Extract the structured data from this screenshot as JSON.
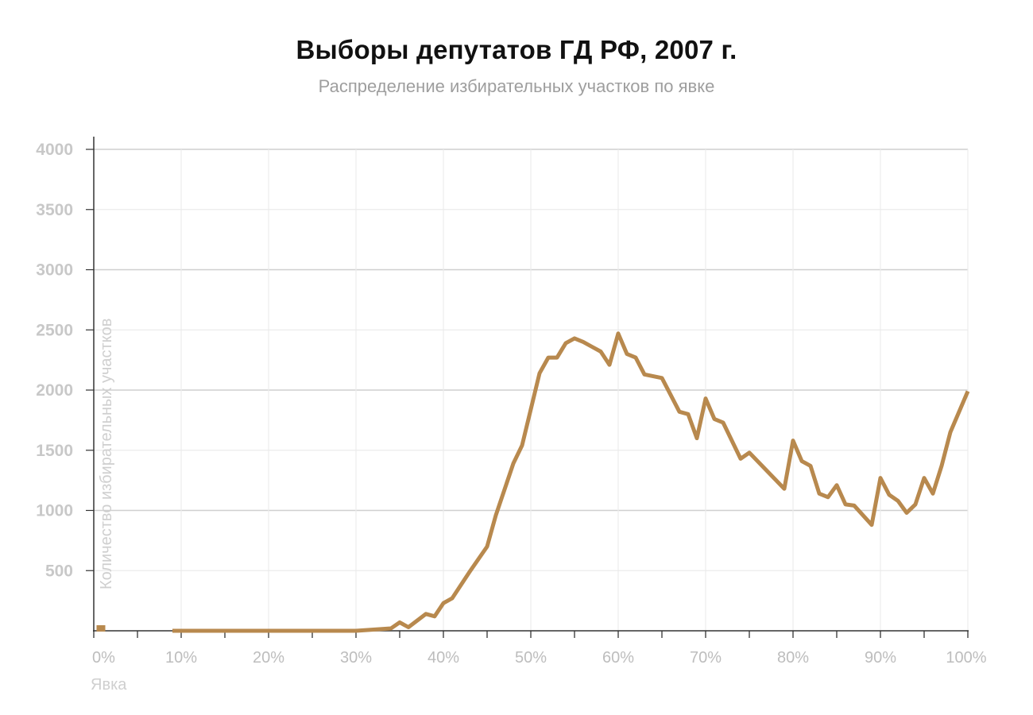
{
  "chart_data": {
    "type": "line",
    "title": "Выборы депутатов ГД РФ, 2007 г.",
    "subtitle": "Распределение избирательных участков по явке",
    "xlabel": "Явка",
    "ylabel": "Количество избирательных участков",
    "xlim": [
      0,
      100
    ],
    "ylim": [
      0,
      4000
    ],
    "x_ticks": [
      0,
      10,
      20,
      30,
      40,
      50,
      60,
      70,
      80,
      90,
      100
    ],
    "x_tick_labels": [
      "0%",
      "10%",
      "20%",
      "30%",
      "40%",
      "50%",
      "60%",
      "70%",
      "80%",
      "90%",
      "100%"
    ],
    "y_ticks": [
      500,
      1000,
      1500,
      2000,
      2500,
      3000,
      3500,
      4000
    ],
    "y_tick_labels": [
      "500",
      "1000",
      "1500",
      "2000",
      "2500",
      "3000",
      "3500",
      "4000"
    ],
    "grid": true,
    "legend": "none",
    "color": "#b8894e",
    "series": [
      {
        "x": [
          0.5,
          9,
          10,
          15,
          20,
          25,
          30,
          32,
          34,
          35,
          36,
          38,
          39,
          40,
          41,
          43,
          45,
          46,
          48,
          49,
          51,
          52,
          53,
          54,
          55,
          56,
          57,
          58,
          59,
          60,
          61,
          62,
          63,
          65,
          67,
          68,
          69,
          70,
          71,
          72,
          74,
          75,
          77,
          79,
          80,
          81,
          82,
          83,
          84,
          85,
          86,
          87,
          88,
          89,
          90,
          91,
          92,
          93,
          94,
          95,
          96,
          97,
          98,
          100
        ],
        "values": [
          20,
          0,
          0,
          0,
          0,
          0,
          0,
          10,
          20,
          70,
          30,
          140,
          120,
          230,
          270,
          490,
          700,
          960,
          1390,
          1540,
          2140,
          2270,
          2270,
          2390,
          2430,
          2400,
          2360,
          2320,
          2210,
          2470,
          2300,
          2270,
          2130,
          2100,
          1820,
          1800,
          1600,
          1930,
          1760,
          1730,
          1430,
          1480,
          1330,
          1180,
          1580,
          1410,
          1370,
          1140,
          1110,
          1210,
          1050,
          1040,
          960,
          880,
          1270,
          1130,
          1080,
          980,
          1050,
          1270,
          1140,
          1370,
          1650,
          1990
        ]
      }
    ]
  }
}
